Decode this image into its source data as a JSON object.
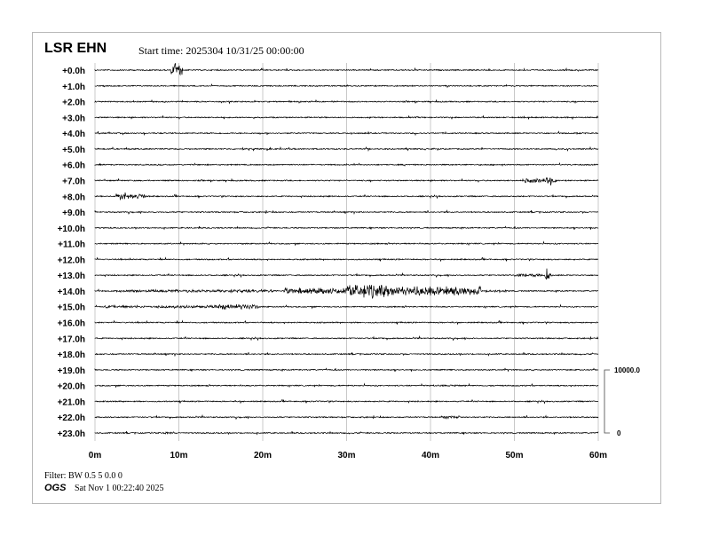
{
  "header": {
    "station": "LSR EHN",
    "start_time": "Start time: 2025304 10/31/25 00:00:00"
  },
  "footer": {
    "filter": "Filter: BW 0.5 5 0.0 0",
    "org": "OGS",
    "timestamp": "Sat Nov  1 00:22:40 2025"
  },
  "chart_data": {
    "type": "line",
    "title": "LSR EHN",
    "row_labels": [
      "+0.0h",
      "+1.0h",
      "+2.0h",
      "+3.0h",
      "+4.0h",
      "+5.0h",
      "+6.0h",
      "+7.0h",
      "+8.0h",
      "+9.0h",
      "+10.0h",
      "+11.0h",
      "+12.0h",
      "+13.0h",
      "+14.0h",
      "+15.0h",
      "+16.0h",
      "+17.0h",
      "+18.0h",
      "+19.0h",
      "+20.0h",
      "+21.0h",
      "+22.0h",
      "+23.0h"
    ],
    "x_ticks": [
      "0m",
      "10m",
      "20m",
      "30m",
      "40m",
      "50m",
      "60m"
    ],
    "xlim": [
      0,
      60
    ],
    "grid": true,
    "scale_bar": {
      "top_label": "10000.0",
      "bottom_label": "0",
      "counts": 10000
    },
    "trace_color": "#000000",
    "grid_color": "#c8c8c8",
    "events": [
      {
        "hour": 0,
        "start_min": 9.0,
        "end_min": 10.5,
        "amplitude": 1300
      },
      {
        "hour": 5,
        "start_min": 17.5,
        "end_min": 19.5,
        "amplitude": 150
      },
      {
        "hour": 7,
        "start_min": 51,
        "end_min": 55,
        "amplitude": 400
      },
      {
        "hour": 7,
        "start_min": 53.7,
        "end_min": 54.4,
        "amplitude": 900
      },
      {
        "hour": 8,
        "start_min": 2.5,
        "end_min": 6,
        "amplitude": 450
      },
      {
        "hour": 8,
        "start_min": 3.0,
        "end_min": 3.7,
        "amplitude": 900
      },
      {
        "hour": 13,
        "start_min": 50,
        "end_min": 54.5,
        "amplitude": 250
      },
      {
        "hour": 13,
        "start_min": 53.6,
        "end_min": 54.3,
        "amplitude": 1100
      },
      {
        "hour": 14,
        "start_min": 3,
        "end_min": 22,
        "amplitude": 250
      },
      {
        "hour": 14,
        "start_min": 22.5,
        "end_min": 30,
        "amplitude": 550
      },
      {
        "hour": 14,
        "start_min": 30,
        "end_min": 35,
        "amplitude": 1200
      },
      {
        "hour": 14,
        "start_min": 35,
        "end_min": 46,
        "amplitude": 800
      },
      {
        "hour": 14,
        "start_min": 46,
        "end_min": 49,
        "amplitude": 250
      },
      {
        "hour": 15,
        "start_min": 1,
        "end_min": 14,
        "amplitude": 250
      },
      {
        "hour": 15,
        "start_min": 14,
        "end_min": 19.5,
        "amplitude": 450
      },
      {
        "hour": 20,
        "start_min": 39,
        "end_min": 44,
        "amplitude": 150
      },
      {
        "hour": 22,
        "start_min": 41.5,
        "end_min": 43.5,
        "amplitude": 250
      },
      {
        "hour": 23,
        "start_min": 8,
        "end_min": 9.5,
        "amplitude": 200
      }
    ]
  }
}
